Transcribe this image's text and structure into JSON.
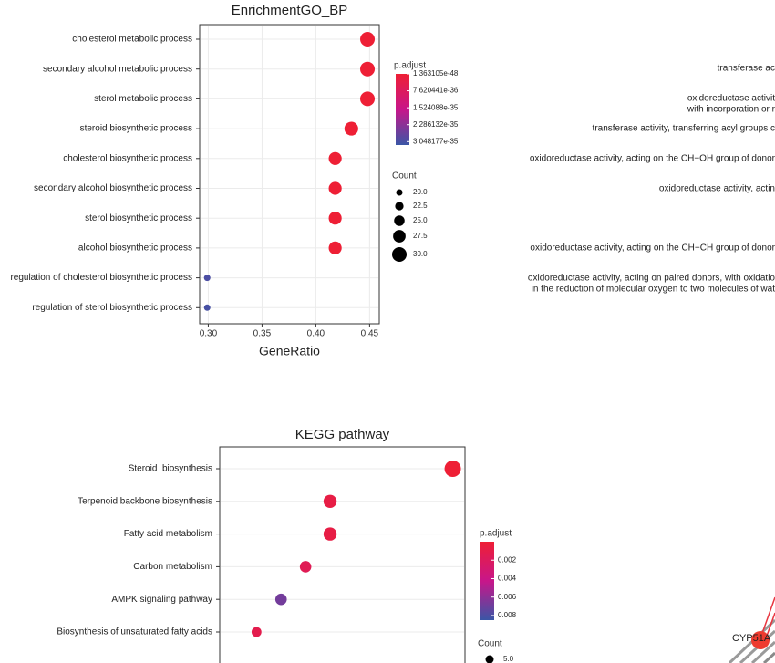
{
  "chart_data": [
    {
      "type": "dot",
      "title": "EnrichmentGO_BP",
      "x_label": "GeneRatio",
      "categories": [
        "cholesterol metabolic process",
        "secondary alcohol metabolic process",
        "sterol metabolic process",
        "steroid biosynthetic process",
        "cholesterol biosynthetic process",
        "secondary alcohol biosynthetic process",
        "sterol biosynthetic process",
        "alcohol biosynthetic process",
        "regulation of cholesterol biosynthetic process",
        "regulation of sterol biosynthetic process"
      ],
      "values": [
        0.448,
        0.448,
        0.448,
        0.433,
        0.418,
        0.418,
        0.418,
        0.418,
        0.299,
        0.299
      ],
      "counts": [
        30,
        30,
        30,
        29,
        28,
        28,
        28,
        28,
        20,
        20
      ],
      "padjust": [
        1.363105e-48,
        1.4e-48,
        2e-48,
        1e-46,
        5e-45,
        5e-45,
        5e-45,
        8e-45,
        3e-35,
        3.048177e-35
      ],
      "xlim": [
        0.292,
        0.459
      ],
      "xticks": [
        {
          "value": 0.3,
          "label": "0.30"
        },
        0.35,
        {
          "value": 0.4,
          "label": "0.40"
        },
        0.45
      ],
      "color_label": "p.adjust",
      "color_lim": [
        0,
        3.2e-35
      ],
      "color_ticks": [
        1.363105e-48,
        7.620441e-36,
        1.524088e-35,
        2.286132e-35,
        3.048177e-35
      ],
      "colors": [
        "#ee1f35",
        "#c8168a",
        "#3a56a6"
      ],
      "size_label": "Count",
      "size_ticks": [
        {
          "value": 20,
          "label": "20.0"
        },
        {
          "value": 22.5,
          "label": "22.5"
        },
        {
          "value": 25,
          "label": "25.0"
        },
        {
          "value": 27.5,
          "label": "27.5"
        },
        {
          "value": 30,
          "label": "30.0"
        }
      ]
    },
    {
      "type": "dot",
      "title": "KEGG pathway",
      "categories": [
        "Steroid  biosynthesis",
        "Terpenoid backbone biosynthesis",
        "Fatty acid metabolism",
        "Carbon metabolism",
        "AMPK signaling pathway",
        "Biosynthesis of unsaturated fatty acids"
      ],
      "values": [
        0.25,
        0.15,
        0.15,
        0.13,
        0.11,
        0.09
      ],
      "counts": [
        10,
        8,
        8,
        7,
        7,
        6
      ],
      "padjust": [
        1e-05,
        0.0008,
        0.0008,
        0.0016,
        0.0068,
        0.0012
      ],
      "xlim": [
        0.06,
        0.26
      ],
      "color_label": "p.adjust",
      "color_lim": [
        0,
        0.0085
      ],
      "color_ticks": [
        0.002,
        0.004,
        0.006,
        0.008
      ],
      "colors": [
        "#ee1f35",
        "#c8168a",
        "#3a56a6"
      ],
      "size_label": "Count",
      "size_ticks": [
        {
          "value": 5,
          "label": "5.0"
        }
      ]
    }
  ],
  "right_panel_labels": [
    {
      "lines": [
        "transferase ac"
      ]
    },
    {
      "lines": [
        "oxidoreductase activit",
        "with incorporation or r"
      ]
    },
    {
      "lines": [
        "transferase activity, transferring acyl groups c"
      ]
    },
    {
      "lines": [
        "oxidoreductase activity, acting on the CH−OH group of donor"
      ]
    },
    {
      "lines": [
        "oxidoreductase activity, actin"
      ]
    },
    {
      "lines": [
        "oxidoreductase activity, acting on the CH−CH group of donor"
      ]
    },
    {
      "lines": [
        "oxidoreductase activity, acting on paired donors, with oxidatio",
        "in the reduction of molecular oxygen to two molecules of wat"
      ]
    }
  ],
  "network_label": "CYP51A"
}
